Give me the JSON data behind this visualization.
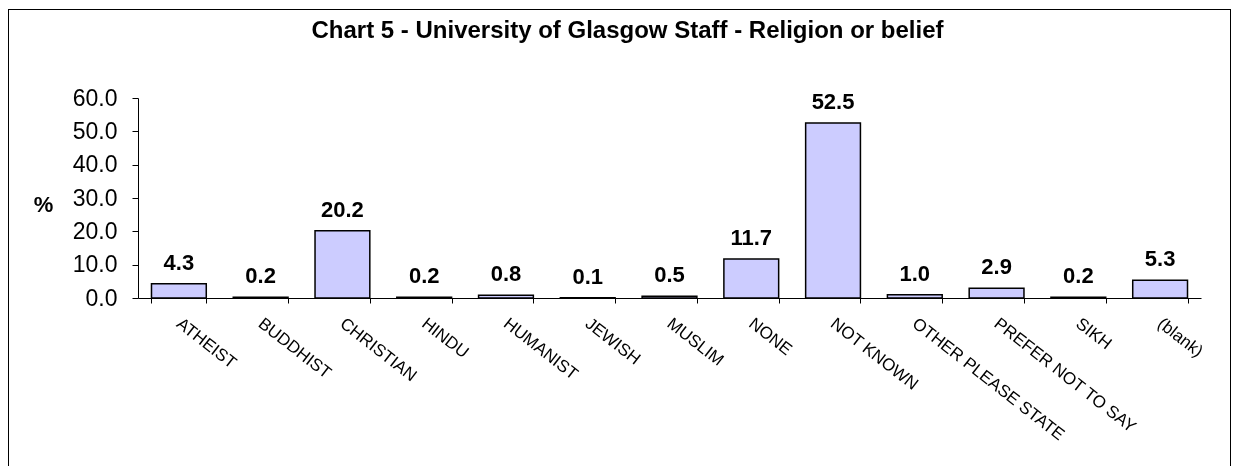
{
  "chart_data": {
    "type": "bar",
    "title": "Chart 5 - University of Glasgow Staff - Religion or belief",
    "ylabel": "%",
    "categories": [
      "ATHEIST",
      "BUDDHIST",
      "CHRISTIAN",
      "HINDU",
      "HUMANIST",
      "JEWISH",
      "MUSLIM",
      "NONE",
      "NOT KNOWN",
      "OTHER PLEASE STATE",
      "PREFER NOT TO SAY",
      "SIKH",
      "(blank)"
    ],
    "values": [
      4.3,
      0.2,
      20.2,
      0.2,
      0.8,
      0.1,
      0.5,
      11.7,
      52.5,
      1.0,
      2.9,
      0.2,
      5.3
    ],
    "value_labels": [
      "4.3",
      "0.2",
      "20.2",
      "0.2",
      "0.8",
      "0.1",
      "0.5",
      "11.7",
      "52.5",
      "1.0",
      "2.9",
      "0.2",
      "5.3"
    ],
    "color": "#ccccff",
    "ylim": [
      0,
      60
    ],
    "yticks": [
      {
        "value": 0,
        "label": "0.0"
      },
      {
        "value": 10,
        "label": "10.0"
      },
      {
        "value": 20,
        "label": "20.0"
      },
      {
        "value": 30,
        "label": "30.0"
      },
      {
        "value": 40,
        "label": "40.0"
      },
      {
        "value": 50,
        "label": "50.0"
      },
      {
        "value": 60,
        "label": "60.0"
      }
    ],
    "grid": false
  }
}
